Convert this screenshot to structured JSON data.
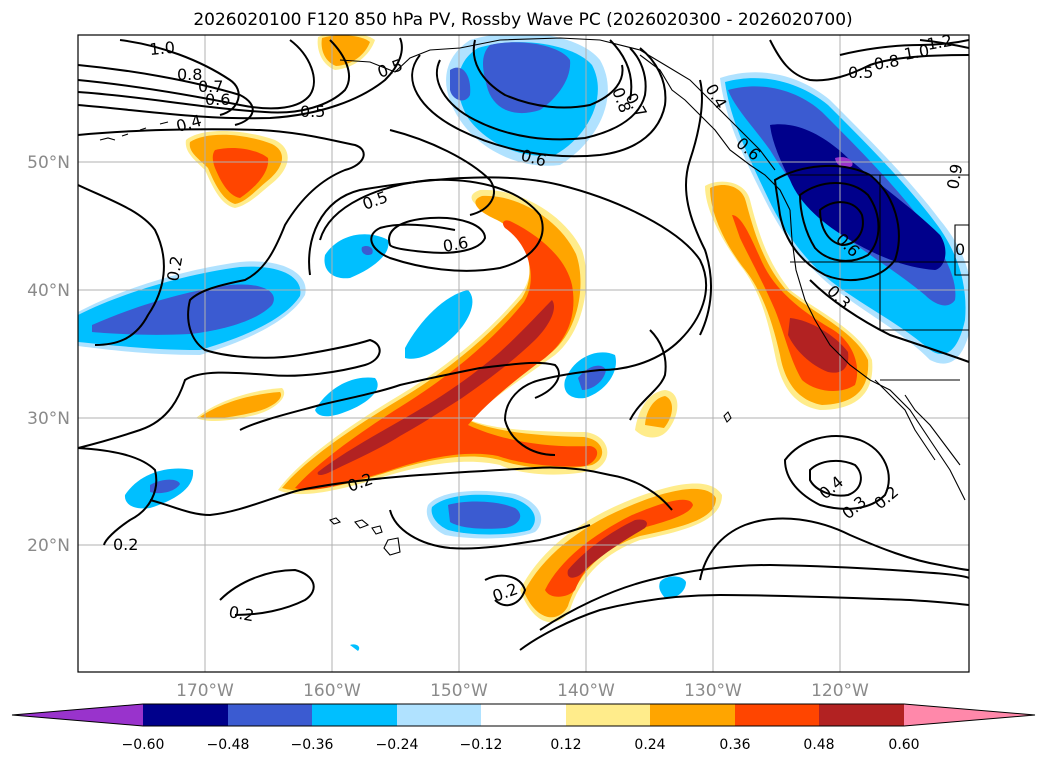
{
  "title": "2026020100 F120 850 hPa PV, Rossby Wave PC (2026020300 - 2026020700)",
  "map": {
    "lat_labels": [
      "50°N",
      "40°N",
      "30°N",
      "20°N"
    ],
    "lon_labels": [
      "170°W",
      "160°W",
      "150°W",
      "140°W",
      "130°W",
      "120°W"
    ]
  },
  "contour_labels": [
    "1.0",
    "0.8",
    "0.7",
    "0.6",
    "0.5",
    "0.4",
    "0.5",
    "0.6",
    "0.5",
    "0.6",
    "0.2",
    "0.2",
    "0.2",
    "0.2",
    "0.8",
    "0.7",
    "0.6",
    "0.4",
    "1.2",
    "1.0",
    "0.8",
    "0.5",
    "0.6",
    "0.3",
    "0.4",
    "0.3",
    "0.2",
    "0.2",
    "0.9",
    "0"
  ],
  "colorbar": {
    "ticks": [
      "−0.60",
      "−0.48",
      "−0.36",
      "−0.24",
      "−0.12",
      "0.12",
      "0.24",
      "0.36",
      "0.48",
      "0.60"
    ],
    "colors": [
      "#9933cc",
      "#00008b",
      "#3b5bd1",
      "#00bfff",
      "#b0e2ff",
      "#ffffff",
      "#ffec8b",
      "#ffa500",
      "#ff4500",
      "#b22222",
      "#ff88aa"
    ]
  },
  "shading_colors": {
    "neg1": "#b0e2ff",
    "neg2": "#00bfff",
    "neg3": "#3b5bd1",
    "neg4": "#00008b",
    "neg5": "#9933cc",
    "pos1": "#ffec8b",
    "pos2": "#ffa500",
    "pos3": "#ff4500",
    "pos4": "#b22222"
  }
}
